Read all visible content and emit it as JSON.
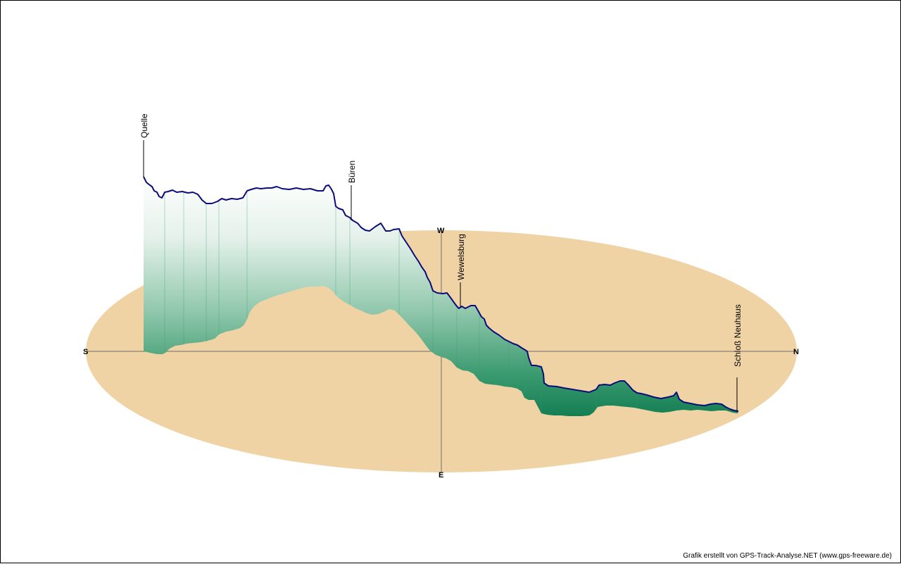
{
  "compass": {
    "north": "N",
    "south": "S",
    "west": "W",
    "east": "E"
  },
  "waypoints": [
    {
      "id": "quelle",
      "label": "Quelle"
    },
    {
      "id": "bueren",
      "label": "Büren"
    },
    {
      "id": "wewelsburg",
      "label": "Wewelsburg"
    },
    {
      "id": "schloss-neuhaus",
      "label": "Schloß Neuhaus"
    }
  ],
  "credit": "Grafik erstellt von GPS-Track-Analyse.NET (www.gps-freeware.de)",
  "colors": {
    "ground": "#f0d3a5",
    "axis": "#6e6e6e",
    "track_line": "#0c0c7a",
    "wall_top": "#ffffff",
    "wall_bottom": "#0e7a4e"
  }
}
